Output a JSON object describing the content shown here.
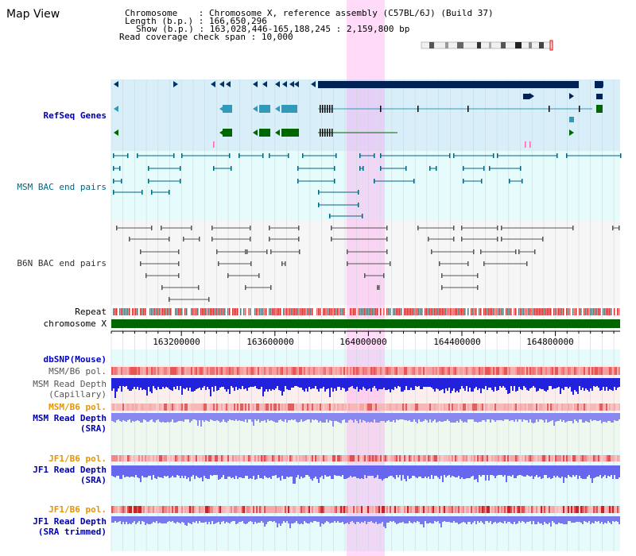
{
  "view": {
    "title": "Map View"
  },
  "info": {
    "chromosome_label": "Chromosome",
    "chromosome_value": "Chromosome X, reference assembly (C57BL/6J) (Build 37)",
    "length_label": "Length (b.p.)",
    "length_value": "166,650,296",
    "show_label": "Show (b.p.)",
    "show_value": "163,028,446-165,188,245 : 2,159,800 bp",
    "coverage_label": "Read coverage check span",
    "coverage_value": "10,000"
  },
  "tracks": {
    "refseq": "RefSeq Genes",
    "msm_bac": "MSM BAC end pairs",
    "b6n_bac": "B6N BAC end pairs",
    "repeat": "Repeat",
    "chromosome": "chromosome X",
    "dbsnp": "dbSNP(Mouse)",
    "msm_b6_pol_1": "MSM/B6 pol.",
    "msm_read_depth_cap_1": "MSM Read Depth",
    "msm_read_depth_cap_2": "(Capillary)",
    "msm_b6_pol_2": "MSM/B6 pol.",
    "msm_read_depth_sra_1": "MSM Read Depth",
    "msm_read_depth_sra_2": "(SRA)",
    "jf1_b6_pol_1": "JF1/B6 pol.",
    "jf1_read_depth_sra_1": "JF1 Read Depth",
    "jf1_read_depth_sra_2": "(SRA)",
    "jf1_b6_pol_2": "JF1/B6 pol.",
    "jf1_read_depth_trim_1": "JF1 Read Depth",
    "jf1_read_depth_trim_2": "(SRA trimmed)"
  },
  "axis": {
    "ticks": [
      "163200000",
      "163600000",
      "164000000",
      "164400000",
      "164800000"
    ]
  },
  "colors": {
    "refseq_label": "#0000aa",
    "msm_label": "#006680",
    "b6n_label": "#333333",
    "dbsnp_label": "#0000cc",
    "pol_gray": "#555555",
    "pol_orange": "#e69500",
    "depth_blue": "#0000aa",
    "highlight": "#ff99ee"
  }
}
